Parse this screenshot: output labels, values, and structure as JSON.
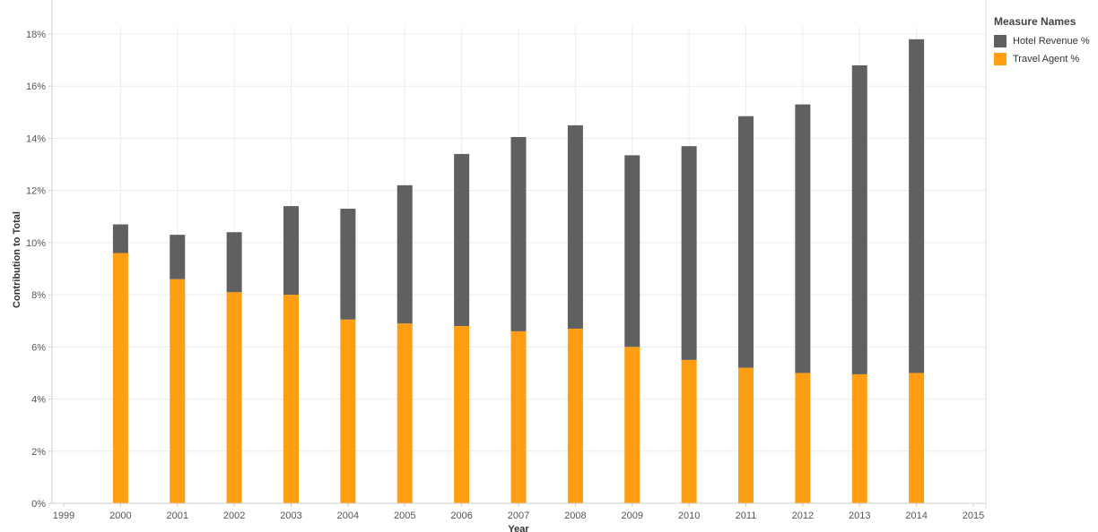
{
  "chart_data": {
    "type": "bar",
    "stacked": true,
    "title": "",
    "xlabel": "Year",
    "ylabel": "Contribution to Total",
    "ylim": [
      0,
      18
    ],
    "yticks": [
      "0%",
      "2%",
      "4%",
      "6%",
      "8%",
      "10%",
      "12%",
      "14%",
      "16%",
      "18%"
    ],
    "xticks": [
      "1999",
      "2000",
      "2001",
      "2002",
      "2003",
      "2004",
      "2005",
      "2006",
      "2007",
      "2008",
      "2009",
      "2010",
      "2011",
      "2012",
      "2013",
      "2014",
      "2015"
    ],
    "categories": [
      "2000",
      "2001",
      "2002",
      "2003",
      "2004",
      "2005",
      "2006",
      "2007",
      "2008",
      "2009",
      "2010",
      "2011",
      "2012",
      "2013",
      "2014"
    ],
    "series": [
      {
        "name": "Travel Agent %",
        "color": "#FF9E12",
        "values": [
          9.6,
          8.6,
          8.1,
          8.0,
          7.05,
          6.9,
          6.8,
          6.6,
          6.7,
          6.0,
          5.5,
          5.2,
          5.0,
          4.95,
          5.0
        ]
      },
      {
        "name": "Hotel Revenue %",
        "color": "#606060",
        "values": [
          1.1,
          1.7,
          2.3,
          3.4,
          4.25,
          5.3,
          6.6,
          7.45,
          7.8,
          7.35,
          8.2,
          9.65,
          10.3,
          11.85,
          12.8
        ]
      }
    ],
    "totals": [
      10.7,
      10.3,
      10.4,
      11.4,
      11.3,
      12.2,
      13.4,
      14.05,
      14.5,
      13.35,
      13.7,
      14.85,
      15.3,
      16.8,
      17.8
    ],
    "grid": true,
    "legend_position": "right"
  },
  "legend": {
    "title": "Measure Names",
    "items": [
      {
        "label": "Hotel Revenue %",
        "color": "#606060"
      },
      {
        "label": "Travel Agent %",
        "color": "#FF9E12"
      }
    ]
  }
}
